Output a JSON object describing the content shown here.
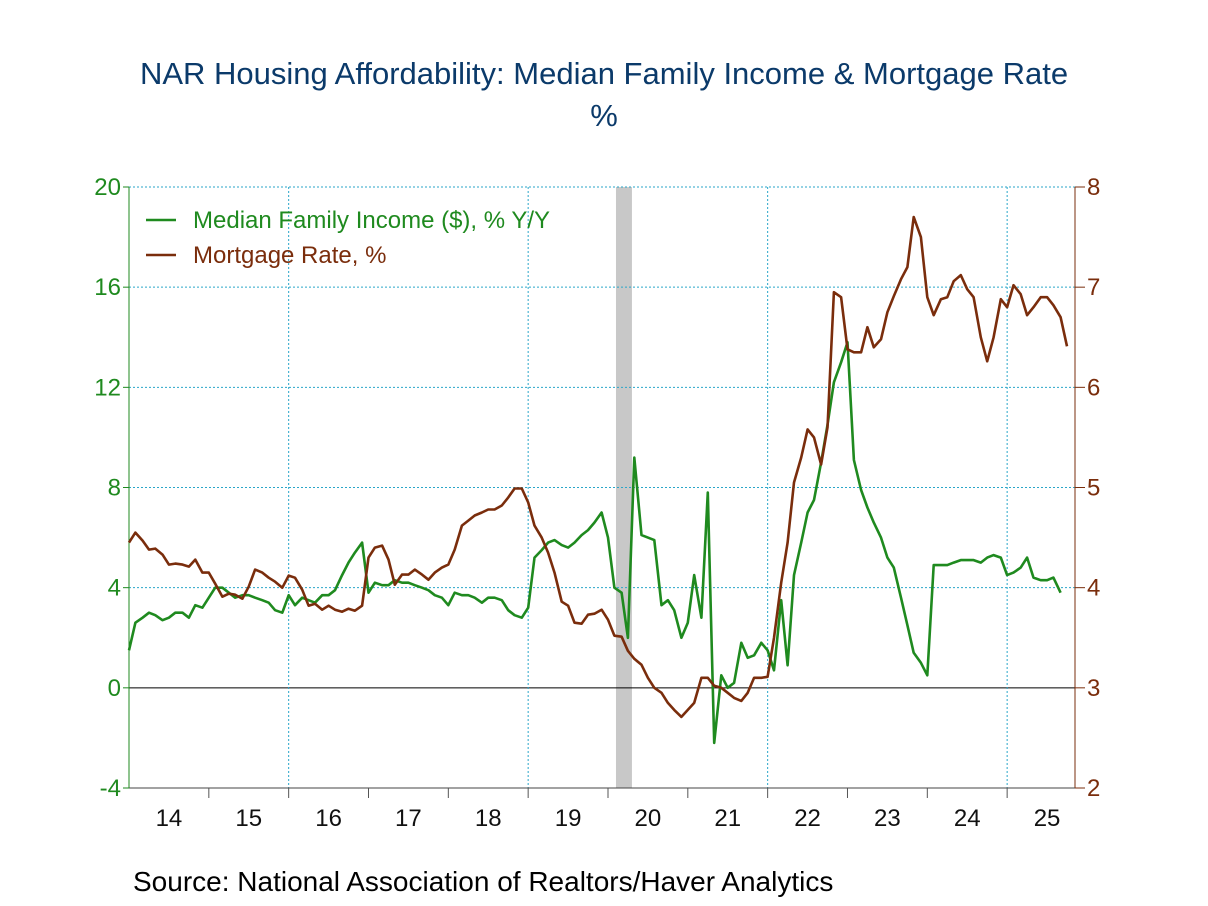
{
  "title": "NAR Housing Affordability: Median Family Income & Mortgage Rate",
  "subtitle": "%",
  "source": "Source:  National Association of Realtors/Haver Analytics",
  "colors": {
    "income": "#1f8a1f",
    "mortgage": "#7a2d0c",
    "recession": "#c8c8c8",
    "grid": "#2aa6c9",
    "title": "#0b3a6a"
  },
  "chart_data": {
    "type": "line",
    "x_categories": [
      "14",
      "15",
      "16",
      "17",
      "18",
      "19",
      "20",
      "21",
      "22",
      "23",
      "24",
      "25"
    ],
    "x_range": [
      2014.0,
      2025.85
    ],
    "y_left": {
      "ylim": [
        -4,
        20
      ],
      "ticks": [
        "-4",
        "0",
        "4",
        "8",
        "12",
        "16",
        "20"
      ]
    },
    "y_right": {
      "ylim": [
        2,
        8
      ],
      "ticks": [
        "2",
        "3",
        "4",
        "5",
        "6",
        "7",
        "8"
      ]
    },
    "grid": true,
    "legend_position": "top-left",
    "recession": {
      "start": 2020.1,
      "end": 2020.3
    },
    "series": [
      {
        "name": "Median Family Income ($), % Y/Y",
        "axis": "left",
        "color": "#1f8a1f",
        "points": [
          [
            2014.0,
            1.5
          ],
          [
            2014.08,
            2.6
          ],
          [
            2014.17,
            2.8
          ],
          [
            2014.25,
            3.0
          ],
          [
            2014.33,
            2.9
          ],
          [
            2014.42,
            2.7
          ],
          [
            2014.5,
            2.8
          ],
          [
            2014.58,
            3.0
          ],
          [
            2014.67,
            3.0
          ],
          [
            2014.75,
            2.8
          ],
          [
            2014.83,
            3.3
          ],
          [
            2014.92,
            3.2
          ],
          [
            2015.0,
            3.6
          ],
          [
            2015.08,
            4.0
          ],
          [
            2015.17,
            4.0
          ],
          [
            2015.25,
            3.8
          ],
          [
            2015.33,
            3.6
          ],
          [
            2015.42,
            3.7
          ],
          [
            2015.5,
            3.7
          ],
          [
            2015.58,
            3.6
          ],
          [
            2015.67,
            3.5
          ],
          [
            2015.75,
            3.4
          ],
          [
            2015.83,
            3.1
          ],
          [
            2015.92,
            3.0
          ],
          [
            2016.0,
            3.7
          ],
          [
            2016.08,
            3.3
          ],
          [
            2016.17,
            3.6
          ],
          [
            2016.25,
            3.5
          ],
          [
            2016.33,
            3.4
          ],
          [
            2016.42,
            3.7
          ],
          [
            2016.5,
            3.7
          ],
          [
            2016.58,
            3.9
          ],
          [
            2016.67,
            4.5
          ],
          [
            2016.75,
            5.0
          ],
          [
            2016.83,
            5.4
          ],
          [
            2016.92,
            5.8
          ],
          [
            2017.0,
            3.8
          ],
          [
            2017.08,
            4.2
          ],
          [
            2017.17,
            4.1
          ],
          [
            2017.25,
            4.1
          ],
          [
            2017.33,
            4.3
          ],
          [
            2017.42,
            4.2
          ],
          [
            2017.5,
            4.2
          ],
          [
            2017.58,
            4.1
          ],
          [
            2017.67,
            4.0
          ],
          [
            2017.75,
            3.9
          ],
          [
            2017.83,
            3.7
          ],
          [
            2017.92,
            3.6
          ],
          [
            2018.0,
            3.3
          ],
          [
            2018.08,
            3.8
          ],
          [
            2018.17,
            3.7
          ],
          [
            2018.25,
            3.7
          ],
          [
            2018.33,
            3.6
          ],
          [
            2018.42,
            3.4
          ],
          [
            2018.5,
            3.6
          ],
          [
            2018.58,
            3.6
          ],
          [
            2018.67,
            3.5
          ],
          [
            2018.75,
            3.1
          ],
          [
            2018.83,
            2.9
          ],
          [
            2018.92,
            2.8
          ],
          [
            2019.0,
            3.2
          ],
          [
            2019.08,
            5.2
          ],
          [
            2019.17,
            5.5
          ],
          [
            2019.25,
            5.8
          ],
          [
            2019.33,
            5.9
          ],
          [
            2019.42,
            5.7
          ],
          [
            2019.5,
            5.6
          ],
          [
            2019.58,
            5.8
          ],
          [
            2019.67,
            6.1
          ],
          [
            2019.75,
            6.3
          ],
          [
            2019.83,
            6.6
          ],
          [
            2019.92,
            7.0
          ],
          [
            2020.0,
            6.0
          ],
          [
            2020.08,
            4.0
          ],
          [
            2020.17,
            3.8
          ],
          [
            2020.25,
            2.0
          ],
          [
            2020.33,
            9.2
          ],
          [
            2020.42,
            6.1
          ],
          [
            2020.5,
            6.0
          ],
          [
            2020.58,
            5.9
          ],
          [
            2020.67,
            3.3
          ],
          [
            2020.75,
            3.5
          ],
          [
            2020.83,
            3.1
          ],
          [
            2020.92,
            2.0
          ],
          [
            2021.0,
            2.6
          ],
          [
            2021.08,
            4.5
          ],
          [
            2021.17,
            2.8
          ],
          [
            2021.25,
            7.8
          ],
          [
            2021.33,
            -2.2
          ],
          [
            2021.42,
            0.5
          ],
          [
            2021.5,
            0.0
          ],
          [
            2021.58,
            0.2
          ],
          [
            2021.67,
            1.8
          ],
          [
            2021.75,
            1.2
          ],
          [
            2021.83,
            1.3
          ],
          [
            2021.92,
            1.8
          ],
          [
            2022.0,
            1.5
          ],
          [
            2022.08,
            0.7
          ],
          [
            2022.17,
            3.5
          ],
          [
            2022.25,
            0.9
          ],
          [
            2022.33,
            4.5
          ],
          [
            2022.42,
            5.8
          ],
          [
            2022.5,
            7.0
          ],
          [
            2022.58,
            7.5
          ],
          [
            2022.67,
            9.0
          ],
          [
            2022.75,
            10.5
          ],
          [
            2022.83,
            12.2
          ],
          [
            2022.92,
            13.0
          ],
          [
            2023.0,
            13.8
          ],
          [
            2023.08,
            9.1
          ],
          [
            2023.17,
            7.9
          ],
          [
            2023.25,
            7.2
          ],
          [
            2023.33,
            6.6
          ],
          [
            2023.42,
            6.0
          ],
          [
            2023.5,
            5.2
          ],
          [
            2023.58,
            4.8
          ],
          [
            2023.67,
            3.6
          ],
          [
            2023.75,
            2.5
          ],
          [
            2023.83,
            1.4
          ],
          [
            2023.92,
            1.0
          ],
          [
            2024.0,
            0.5
          ],
          [
            2024.08,
            4.9
          ],
          [
            2024.17,
            4.9
          ],
          [
            2024.25,
            4.9
          ],
          [
            2024.33,
            5.0
          ],
          [
            2024.42,
            5.1
          ],
          [
            2024.5,
            5.1
          ],
          [
            2024.58,
            5.1
          ],
          [
            2024.67,
            5.0
          ],
          [
            2024.75,
            5.2
          ],
          [
            2024.83,
            5.3
          ],
          [
            2024.92,
            5.2
          ],
          [
            2025.0,
            4.5
          ],
          [
            2025.08,
            4.6
          ],
          [
            2025.17,
            4.8
          ],
          [
            2025.25,
            5.2
          ],
          [
            2025.33,
            4.4
          ],
          [
            2025.42,
            4.3
          ],
          [
            2025.5,
            4.3
          ],
          [
            2025.58,
            4.4
          ],
          [
            2025.67,
            3.8
          ]
        ]
      },
      {
        "name": "Mortgage Rate, %",
        "axis": "right",
        "color": "#7a2d0c",
        "points": [
          [
            2014.0,
            4.45
          ],
          [
            2014.08,
            4.55
          ],
          [
            2014.17,
            4.47
          ],
          [
            2014.25,
            4.38
          ],
          [
            2014.33,
            4.39
          ],
          [
            2014.42,
            4.33
          ],
          [
            2014.5,
            4.23
          ],
          [
            2014.58,
            4.24
          ],
          [
            2014.67,
            4.23
          ],
          [
            2014.75,
            4.21
          ],
          [
            2014.83,
            4.28
          ],
          [
            2014.92,
            4.15
          ],
          [
            2015.0,
            4.15
          ],
          [
            2015.08,
            4.04
          ],
          [
            2015.17,
            3.91
          ],
          [
            2015.25,
            3.94
          ],
          [
            2015.33,
            3.93
          ],
          [
            2015.42,
            3.89
          ],
          [
            2015.5,
            4.01
          ],
          [
            2015.58,
            4.18
          ],
          [
            2015.67,
            4.15
          ],
          [
            2015.75,
            4.1
          ],
          [
            2015.83,
            4.06
          ],
          [
            2015.92,
            4.0
          ],
          [
            2016.0,
            4.12
          ],
          [
            2016.08,
            4.1
          ],
          [
            2016.17,
            3.98
          ],
          [
            2016.25,
            3.82
          ],
          [
            2016.33,
            3.84
          ],
          [
            2016.42,
            3.78
          ],
          [
            2016.5,
            3.82
          ],
          [
            2016.58,
            3.78
          ],
          [
            2016.67,
            3.76
          ],
          [
            2016.75,
            3.79
          ],
          [
            2016.83,
            3.77
          ],
          [
            2016.92,
            3.82
          ],
          [
            2017.0,
            4.3
          ],
          [
            2017.08,
            4.4
          ],
          [
            2017.17,
            4.42
          ],
          [
            2017.25,
            4.28
          ],
          [
            2017.33,
            4.03
          ],
          [
            2017.42,
            4.13
          ],
          [
            2017.5,
            4.13
          ],
          [
            2017.58,
            4.18
          ],
          [
            2017.67,
            4.13
          ],
          [
            2017.75,
            4.08
          ],
          [
            2017.83,
            4.15
          ],
          [
            2017.92,
            4.2
          ],
          [
            2018.0,
            4.23
          ],
          [
            2018.08,
            4.38
          ],
          [
            2018.17,
            4.62
          ],
          [
            2018.25,
            4.67
          ],
          [
            2018.33,
            4.72
          ],
          [
            2018.42,
            4.75
          ],
          [
            2018.5,
            4.78
          ],
          [
            2018.58,
            4.78
          ],
          [
            2018.67,
            4.82
          ],
          [
            2018.75,
            4.9
          ],
          [
            2018.83,
            4.99
          ],
          [
            2018.92,
            4.99
          ],
          [
            2019.0,
            4.85
          ],
          [
            2019.08,
            4.62
          ],
          [
            2019.17,
            4.5
          ],
          [
            2019.25,
            4.35
          ],
          [
            2019.33,
            4.15
          ],
          [
            2019.42,
            3.86
          ],
          [
            2019.5,
            3.82
          ],
          [
            2019.58,
            3.65
          ],
          [
            2019.67,
            3.64
          ],
          [
            2019.75,
            3.73
          ],
          [
            2019.83,
            3.74
          ],
          [
            2019.92,
            3.78
          ],
          [
            2020.0,
            3.68
          ],
          [
            2020.08,
            3.52
          ],
          [
            2020.17,
            3.51
          ],
          [
            2020.25,
            3.37
          ],
          [
            2020.33,
            3.29
          ],
          [
            2020.42,
            3.23
          ],
          [
            2020.5,
            3.1
          ],
          [
            2020.58,
            3.0
          ],
          [
            2020.67,
            2.95
          ],
          [
            2020.75,
            2.85
          ],
          [
            2020.83,
            2.78
          ],
          [
            2020.92,
            2.71
          ],
          [
            2021.0,
            2.78
          ],
          [
            2021.08,
            2.85
          ],
          [
            2021.17,
            3.1
          ],
          [
            2021.25,
            3.1
          ],
          [
            2021.33,
            3.02
          ],
          [
            2021.42,
            3.0
          ],
          [
            2021.5,
            2.95
          ],
          [
            2021.58,
            2.9
          ],
          [
            2021.67,
            2.87
          ],
          [
            2021.75,
            2.95
          ],
          [
            2021.83,
            3.1
          ],
          [
            2021.92,
            3.1
          ],
          [
            2022.0,
            3.11
          ],
          [
            2022.08,
            3.5
          ],
          [
            2022.17,
            4.05
          ],
          [
            2022.25,
            4.45
          ],
          [
            2022.33,
            5.05
          ],
          [
            2022.42,
            5.3
          ],
          [
            2022.5,
            5.58
          ],
          [
            2022.58,
            5.5
          ],
          [
            2022.67,
            5.23
          ],
          [
            2022.75,
            5.6
          ],
          [
            2022.83,
            6.95
          ],
          [
            2022.92,
            6.9
          ],
          [
            2023.0,
            6.38
          ],
          [
            2023.08,
            6.35
          ],
          [
            2023.17,
            6.35
          ],
          [
            2023.25,
            6.6
          ],
          [
            2023.33,
            6.4
          ],
          [
            2023.42,
            6.48
          ],
          [
            2023.5,
            6.75
          ],
          [
            2023.58,
            6.91
          ],
          [
            2023.67,
            7.08
          ],
          [
            2023.75,
            7.2
          ],
          [
            2023.83,
            7.7
          ],
          [
            2023.92,
            7.5
          ],
          [
            2024.0,
            6.9
          ],
          [
            2024.08,
            6.72
          ],
          [
            2024.17,
            6.88
          ],
          [
            2024.25,
            6.9
          ],
          [
            2024.33,
            7.06
          ],
          [
            2024.42,
            7.12
          ],
          [
            2024.5,
            6.98
          ],
          [
            2024.58,
            6.9
          ],
          [
            2024.67,
            6.5
          ],
          [
            2024.75,
            6.26
          ],
          [
            2024.83,
            6.5
          ],
          [
            2024.92,
            6.88
          ],
          [
            2025.0,
            6.8
          ],
          [
            2025.08,
            7.02
          ],
          [
            2025.17,
            6.93
          ],
          [
            2025.25,
            6.72
          ],
          [
            2025.33,
            6.8
          ],
          [
            2025.42,
            6.9
          ],
          [
            2025.5,
            6.9
          ],
          [
            2025.58,
            6.82
          ],
          [
            2025.67,
            6.7
          ],
          [
            2025.75,
            6.41
          ]
        ]
      }
    ]
  }
}
